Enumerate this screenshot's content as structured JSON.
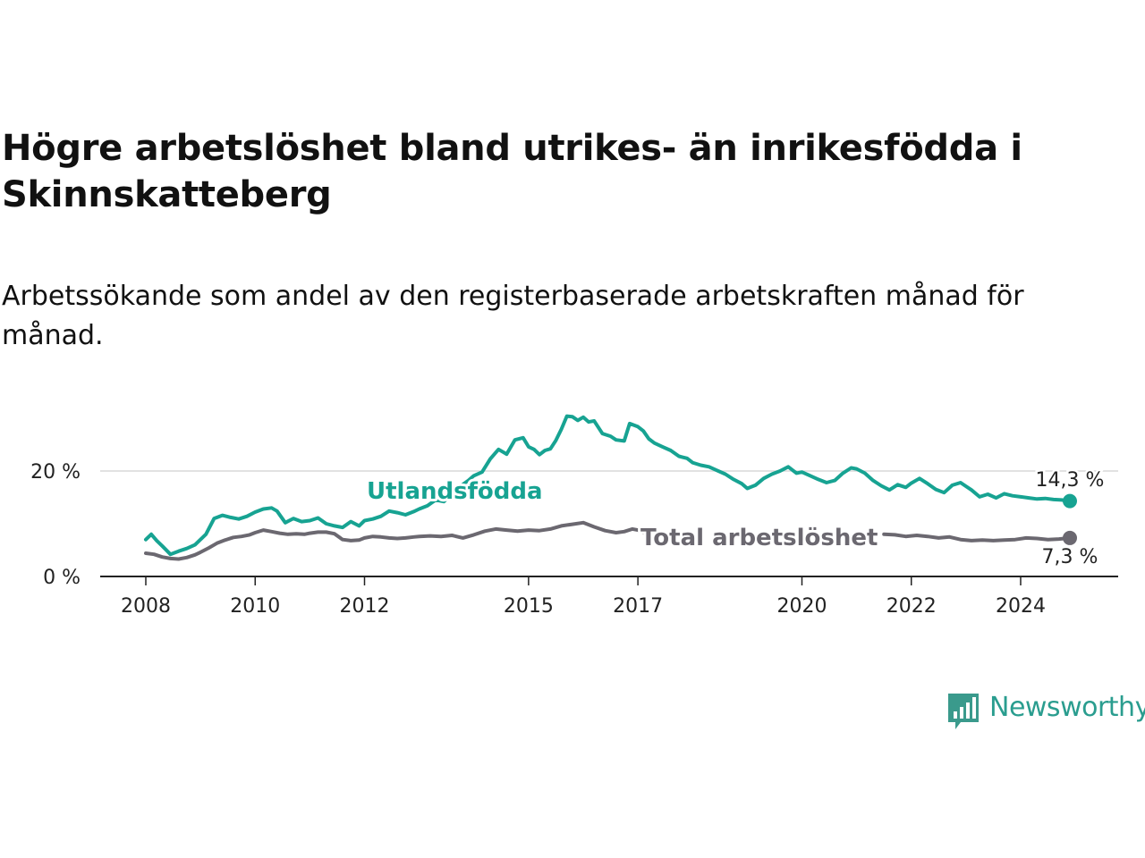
{
  "title": "Högre arbetslöshet bland utrikes- än inrikesfödda i Skinnskatteberg",
  "subtitle": "Arbetssökande som andel av den registerbaserade arbetskraften månad för månad.",
  "logo": {
    "name": "Newsworthy",
    "icon": "newsworthy-bar-chart-icon",
    "color": "#3a9a8c"
  },
  "chart_data": {
    "type": "line",
    "x_unit": "year",
    "ylim": [
      0,
      35
    ],
    "y_ticks": [
      0,
      20
    ],
    "y_tick_labels": [
      "0 %",
      "20 %"
    ],
    "x_ticks": [
      2008,
      2010,
      2012,
      2015,
      2017,
      2020,
      2022,
      2024
    ],
    "x_tick_labels": [
      "2008",
      "2010",
      "2012",
      "2015",
      "2017",
      "2020",
      "2022",
      "2024"
    ],
    "grid": "horizontal",
    "series": [
      {
        "name": "Utlandsfödda",
        "color": "#17a392",
        "end_label": "14,3 %",
        "points": [
          [
            2008.0,
            7.0
          ],
          [
            2008.1,
            8.0
          ],
          [
            2008.2,
            6.8
          ],
          [
            2008.3,
            5.8
          ],
          [
            2008.45,
            4.2
          ],
          [
            2008.6,
            4.8
          ],
          [
            2008.75,
            5.3
          ],
          [
            2008.9,
            6.0
          ],
          [
            2009.0,
            7.0
          ],
          [
            2009.1,
            8.0
          ],
          [
            2009.25,
            11.0
          ],
          [
            2009.4,
            11.6
          ],
          [
            2009.55,
            11.2
          ],
          [
            2009.7,
            10.9
          ],
          [
            2009.85,
            11.4
          ],
          [
            2010.0,
            12.2
          ],
          [
            2010.15,
            12.8
          ],
          [
            2010.3,
            13.0
          ],
          [
            2010.4,
            12.4
          ],
          [
            2010.55,
            10.2
          ],
          [
            2010.7,
            11.0
          ],
          [
            2010.85,
            10.4
          ],
          [
            2011.0,
            10.6
          ],
          [
            2011.15,
            11.1
          ],
          [
            2011.3,
            10.0
          ],
          [
            2011.45,
            9.6
          ],
          [
            2011.6,
            9.3
          ],
          [
            2011.75,
            10.4
          ],
          [
            2011.9,
            9.6
          ],
          [
            2012.0,
            10.6
          ],
          [
            2012.15,
            10.9
          ],
          [
            2012.3,
            11.4
          ],
          [
            2012.45,
            12.4
          ],
          [
            2012.6,
            12.1
          ],
          [
            2012.75,
            11.7
          ],
          [
            2012.9,
            12.3
          ],
          [
            2013.0,
            12.8
          ],
          [
            2013.15,
            13.4
          ],
          [
            2013.3,
            14.5
          ],
          [
            2013.45,
            14.2
          ],
          [
            2013.6,
            15.6
          ],
          [
            2013.75,
            17.1
          ],
          [
            2013.9,
            18.2
          ],
          [
            2014.0,
            19.1
          ],
          [
            2014.15,
            19.8
          ],
          [
            2014.3,
            22.3
          ],
          [
            2014.45,
            24.1
          ],
          [
            2014.6,
            23.2
          ],
          [
            2014.75,
            25.9
          ],
          [
            2014.9,
            26.3
          ],
          [
            2015.0,
            24.6
          ],
          [
            2015.1,
            24.1
          ],
          [
            2015.2,
            23.1
          ],
          [
            2015.3,
            23.9
          ],
          [
            2015.4,
            24.2
          ],
          [
            2015.5,
            25.8
          ],
          [
            2015.6,
            27.9
          ],
          [
            2015.7,
            30.4
          ],
          [
            2015.8,
            30.3
          ],
          [
            2015.9,
            29.6
          ],
          [
            2016.0,
            30.2
          ],
          [
            2016.1,
            29.3
          ],
          [
            2016.2,
            29.5
          ],
          [
            2016.35,
            27.1
          ],
          [
            2016.5,
            26.6
          ],
          [
            2016.6,
            25.9
          ],
          [
            2016.75,
            25.7
          ],
          [
            2016.85,
            29.0
          ],
          [
            2017.0,
            28.4
          ],
          [
            2017.1,
            27.6
          ],
          [
            2017.2,
            26.1
          ],
          [
            2017.3,
            25.3
          ],
          [
            2017.45,
            24.6
          ],
          [
            2017.6,
            23.9
          ],
          [
            2017.75,
            22.8
          ],
          [
            2017.9,
            22.4
          ],
          [
            2018.0,
            21.6
          ],
          [
            2018.15,
            21.1
          ],
          [
            2018.3,
            20.8
          ],
          [
            2018.45,
            20.1
          ],
          [
            2018.6,
            19.4
          ],
          [
            2018.75,
            18.4
          ],
          [
            2018.9,
            17.6
          ],
          [
            2019.0,
            16.7
          ],
          [
            2019.15,
            17.3
          ],
          [
            2019.3,
            18.6
          ],
          [
            2019.45,
            19.4
          ],
          [
            2019.6,
            20.0
          ],
          [
            2019.75,
            20.8
          ],
          [
            2019.9,
            19.6
          ],
          [
            2020.0,
            19.8
          ],
          [
            2020.15,
            19.1
          ],
          [
            2020.3,
            18.4
          ],
          [
            2020.45,
            17.8
          ],
          [
            2020.6,
            18.2
          ],
          [
            2020.75,
            19.6
          ],
          [
            2020.9,
            20.6
          ],
          [
            2021.0,
            20.4
          ],
          [
            2021.15,
            19.6
          ],
          [
            2021.3,
            18.2
          ],
          [
            2021.45,
            17.2
          ],
          [
            2021.6,
            16.4
          ],
          [
            2021.75,
            17.4
          ],
          [
            2021.9,
            16.9
          ],
          [
            2022.0,
            17.7
          ],
          [
            2022.15,
            18.6
          ],
          [
            2022.3,
            17.6
          ],
          [
            2022.45,
            16.5
          ],
          [
            2022.6,
            15.9
          ],
          [
            2022.75,
            17.3
          ],
          [
            2022.9,
            17.8
          ],
          [
            2023.0,
            17.1
          ],
          [
            2023.1,
            16.4
          ],
          [
            2023.25,
            15.1
          ],
          [
            2023.4,
            15.6
          ],
          [
            2023.55,
            14.9
          ],
          [
            2023.7,
            15.7
          ],
          [
            2023.85,
            15.3
          ],
          [
            2024.0,
            15.1
          ],
          [
            2024.15,
            14.9
          ],
          [
            2024.3,
            14.7
          ],
          [
            2024.45,
            14.8
          ],
          [
            2024.6,
            14.6
          ],
          [
            2024.75,
            14.5
          ],
          [
            2024.9,
            14.3
          ]
        ]
      },
      {
        "name": "Total arbetslöshet",
        "color": "#6b6870",
        "end_label": "7,3 %",
        "points": [
          [
            2008.0,
            4.4
          ],
          [
            2008.15,
            4.2
          ],
          [
            2008.3,
            3.7
          ],
          [
            2008.45,
            3.4
          ],
          [
            2008.6,
            3.3
          ],
          [
            2008.75,
            3.6
          ],
          [
            2008.9,
            4.1
          ],
          [
            2009.0,
            4.6
          ],
          [
            2009.15,
            5.4
          ],
          [
            2009.3,
            6.3
          ],
          [
            2009.45,
            6.9
          ],
          [
            2009.6,
            7.4
          ],
          [
            2009.75,
            7.6
          ],
          [
            2009.9,
            7.9
          ],
          [
            2010.0,
            8.3
          ],
          [
            2010.15,
            8.8
          ],
          [
            2010.3,
            8.5
          ],
          [
            2010.45,
            8.2
          ],
          [
            2010.6,
            8.0
          ],
          [
            2010.75,
            8.1
          ],
          [
            2010.9,
            8.0
          ],
          [
            2011.0,
            8.2
          ],
          [
            2011.15,
            8.4
          ],
          [
            2011.3,
            8.4
          ],
          [
            2011.45,
            8.1
          ],
          [
            2011.6,
            7.0
          ],
          [
            2011.75,
            6.8
          ],
          [
            2011.9,
            6.9
          ],
          [
            2012.0,
            7.3
          ],
          [
            2012.15,
            7.6
          ],
          [
            2012.3,
            7.5
          ],
          [
            2012.45,
            7.3
          ],
          [
            2012.6,
            7.2
          ],
          [
            2012.75,
            7.3
          ],
          [
            2012.9,
            7.5
          ],
          [
            2013.0,
            7.6
          ],
          [
            2013.2,
            7.7
          ],
          [
            2013.4,
            7.6
          ],
          [
            2013.6,
            7.8
          ],
          [
            2013.8,
            7.3
          ],
          [
            2014.0,
            7.9
          ],
          [
            2014.2,
            8.6
          ],
          [
            2014.4,
            9.0
          ],
          [
            2014.6,
            8.8
          ],
          [
            2014.8,
            8.6
          ],
          [
            2015.0,
            8.8
          ],
          [
            2015.2,
            8.7
          ],
          [
            2015.4,
            9.0
          ],
          [
            2015.6,
            9.6
          ],
          [
            2015.8,
            9.9
          ],
          [
            2016.0,
            10.2
          ],
          [
            2016.2,
            9.4
          ],
          [
            2016.4,
            8.7
          ],
          [
            2016.6,
            8.3
          ],
          [
            2016.75,
            8.5
          ],
          [
            2016.9,
            9.0
          ],
          [
            2017.0,
            8.8
          ],
          [
            2017.1,
            8.3
          ],
          [
            2021.5,
            8.0
          ],
          [
            2021.7,
            7.9
          ],
          [
            2021.9,
            7.6
          ],
          [
            2022.1,
            7.8
          ],
          [
            2022.3,
            7.6
          ],
          [
            2022.5,
            7.3
          ],
          [
            2022.7,
            7.5
          ],
          [
            2022.9,
            7.0
          ],
          [
            2023.1,
            6.8
          ],
          [
            2023.3,
            6.9
          ],
          [
            2023.5,
            6.8
          ],
          [
            2023.7,
            6.9
          ],
          [
            2023.9,
            7.0
          ],
          [
            2024.1,
            7.3
          ],
          [
            2024.3,
            7.2
          ],
          [
            2024.5,
            7.0
          ],
          [
            2024.7,
            7.1
          ],
          [
            2024.9,
            7.3
          ]
        ]
      }
    ]
  }
}
